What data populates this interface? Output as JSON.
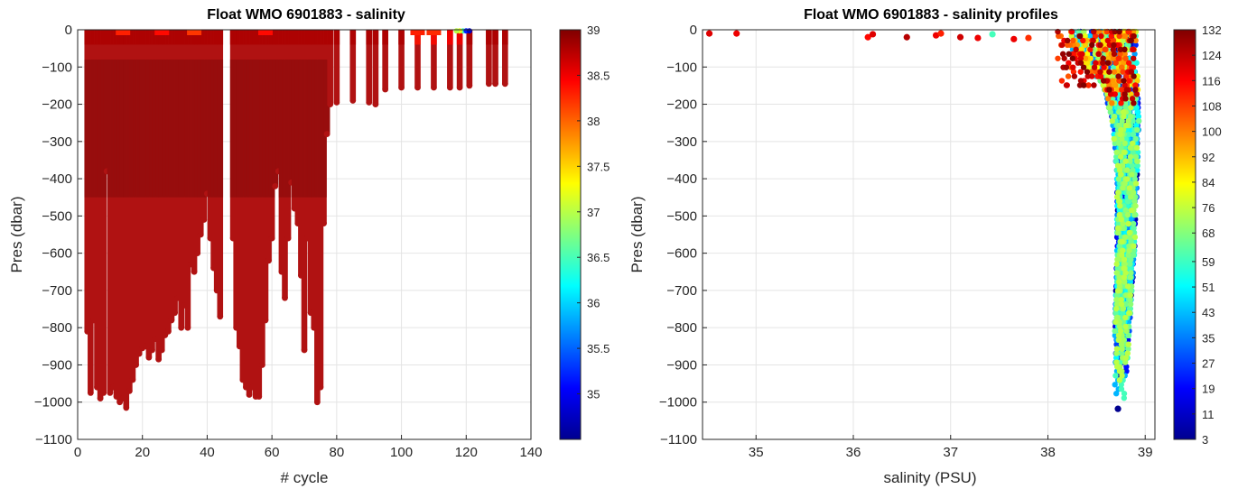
{
  "chart_data": [
    {
      "type": "scatter",
      "title": "Float WMO 6901883 - salinity",
      "xlabel": "# cycle",
      "ylabel": "Pres (dbar)",
      "xlim": [
        0,
        140
      ],
      "ylim": [
        -1100,
        0
      ],
      "xticks": [
        0,
        20,
        40,
        60,
        80,
        100,
        120,
        140
      ],
      "yticks": [
        0,
        -100,
        -200,
        -300,
        -400,
        -500,
        -600,
        -700,
        -800,
        -900,
        -1000,
        -1100
      ],
      "grid": true,
      "colormap": "jet",
      "colorbar": {
        "range": [
          34.5,
          39
        ],
        "ticks": [
          35,
          35.5,
          36,
          36.5,
          37,
          37.5,
          38,
          38.5,
          39
        ]
      },
      "profiles": [
        {
          "cycle": 3,
          "max_pres": 810
        },
        {
          "cycle": 4,
          "max_pres": 975
        },
        {
          "cycle": 5,
          "max_pres": 780
        },
        {
          "cycle": 6,
          "max_pres": 960
        },
        {
          "cycle": 7,
          "max_pres": 990
        },
        {
          "cycle": 8,
          "max_pres": 975
        },
        {
          "cycle": 9,
          "max_pres": 380
        },
        {
          "cycle": 10,
          "max_pres": 975
        },
        {
          "cycle": 11,
          "max_pres": 960
        },
        {
          "cycle": 12,
          "max_pres": 985
        },
        {
          "cycle": 13,
          "max_pres": 1000
        },
        {
          "cycle": 14,
          "max_pres": 990
        },
        {
          "cycle": 15,
          "max_pres": 1015
        },
        {
          "cycle": 16,
          "max_pres": 970
        },
        {
          "cycle": 17,
          "max_pres": 940
        },
        {
          "cycle": 18,
          "max_pres": 900
        },
        {
          "cycle": 19,
          "max_pres": 870
        },
        {
          "cycle": 20,
          "max_pres": 855
        },
        {
          "cycle": 21,
          "max_pres": 850
        },
        {
          "cycle": 22,
          "max_pres": 880
        },
        {
          "cycle": 23,
          "max_pres": 860
        },
        {
          "cycle": 24,
          "max_pres": 830
        },
        {
          "cycle": 25,
          "max_pres": 885
        },
        {
          "cycle": 26,
          "max_pres": 860
        },
        {
          "cycle": 27,
          "max_pres": 820
        },
        {
          "cycle": 28,
          "max_pres": 810
        },
        {
          "cycle": 29,
          "max_pres": 780
        },
        {
          "cycle": 30,
          "max_pres": 760
        },
        {
          "cycle": 31,
          "max_pres": 720
        },
        {
          "cycle": 32,
          "max_pres": 800
        },
        {
          "cycle": 33,
          "max_pres": 740
        },
        {
          "cycle": 34,
          "max_pres": 800
        },
        {
          "cycle": 35,
          "max_pres": 630
        },
        {
          "cycle": 36,
          "max_pres": 650
        },
        {
          "cycle": 37,
          "max_pres": 600
        },
        {
          "cycle": 38,
          "max_pres": 550
        },
        {
          "cycle": 39,
          "max_pres": 510
        },
        {
          "cycle": 40,
          "max_pres": 440
        },
        {
          "cycle": 41,
          "max_pres": 560
        },
        {
          "cycle": 42,
          "max_pres": 640
        },
        {
          "cycle": 43,
          "max_pres": 700
        },
        {
          "cycle": 44,
          "max_pres": 770
        },
        {
          "cycle": 48,
          "max_pres": 560
        },
        {
          "cycle": 49,
          "max_pres": 800
        },
        {
          "cycle": 50,
          "max_pres": 850
        },
        {
          "cycle": 51,
          "max_pres": 940
        },
        {
          "cycle": 52,
          "max_pres": 960
        },
        {
          "cycle": 53,
          "max_pres": 980
        },
        {
          "cycle": 54,
          "max_pres": 960
        },
        {
          "cycle": 55,
          "max_pres": 985
        },
        {
          "cycle": 56,
          "max_pres": 985
        },
        {
          "cycle": 57,
          "max_pres": 900
        },
        {
          "cycle": 58,
          "max_pres": 780
        },
        {
          "cycle": 59,
          "max_pres": 620
        },
        {
          "cycle": 60,
          "max_pres": 560
        },
        {
          "cycle": 61,
          "max_pres": 420
        },
        {
          "cycle": 62,
          "max_pres": 380
        },
        {
          "cycle": 63,
          "max_pres": 650
        },
        {
          "cycle": 64,
          "max_pres": 720
        },
        {
          "cycle": 65,
          "max_pres": 560
        },
        {
          "cycle": 66,
          "max_pres": 410
        },
        {
          "cycle": 67,
          "max_pres": 480
        },
        {
          "cycle": 68,
          "max_pres": 520
        },
        {
          "cycle": 69,
          "max_pres": 660
        },
        {
          "cycle": 70,
          "max_pres": 860
        },
        {
          "cycle": 71,
          "max_pres": 560
        },
        {
          "cycle": 72,
          "max_pres": 760
        },
        {
          "cycle": 73,
          "max_pres": 800
        },
        {
          "cycle": 74,
          "max_pres": 1000
        },
        {
          "cycle": 75,
          "max_pres": 960
        },
        {
          "cycle": 76,
          "max_pres": 520
        },
        {
          "cycle": 77,
          "max_pres": 280
        },
        {
          "cycle": 78,
          "max_pres": 200
        },
        {
          "cycle": 80,
          "max_pres": 195
        },
        {
          "cycle": 85,
          "max_pres": 190
        },
        {
          "cycle": 90,
          "max_pres": 195
        },
        {
          "cycle": 92,
          "max_pres": 200
        },
        {
          "cycle": 95,
          "max_pres": 160
        },
        {
          "cycle": 100,
          "max_pres": 155
        },
        {
          "cycle": 105,
          "max_pres": 155
        },
        {
          "cycle": 110,
          "max_pres": 155
        },
        {
          "cycle": 115,
          "max_pres": 155
        },
        {
          "cycle": 118,
          "max_pres": 155
        },
        {
          "cycle": 121,
          "max_pres": 150
        },
        {
          "cycle": 127,
          "max_pres": 145
        },
        {
          "cycle": 129,
          "max_pres": 145
        },
        {
          "cycle": 132,
          "max_pres": 145
        }
      ]
    },
    {
      "type": "scatter",
      "title": "Float WMO 6901883 - salinity profiles",
      "xlabel": "salinity (PSU)",
      "ylabel": "Pres (dbar)",
      "xlim": [
        34.45,
        39.1
      ],
      "ylim": [
        -1100,
        0
      ],
      "xticks": [
        35,
        36,
        37,
        38,
        39
      ],
      "yticks": [
        0,
        -100,
        -200,
        -300,
        -400,
        -500,
        -600,
        -700,
        -800,
        -900,
        -1000,
        -1100
      ],
      "grid": true,
      "colormap": "jet",
      "colorbar": {
        "range": [
          3,
          132
        ],
        "ticks": [
          3,
          11,
          19,
          27,
          35,
          43,
          51,
          59,
          68,
          76,
          84,
          92,
          100,
          108,
          116,
          124,
          132
        ]
      },
      "surface_points": [
        {
          "salinity": 34.52,
          "pres": -10,
          "cycle": 120
        },
        {
          "salinity": 34.8,
          "pres": -10,
          "cycle": 118
        },
        {
          "salinity": 36.15,
          "pres": -20,
          "cycle": 115
        },
        {
          "salinity": 36.2,
          "pres": -12,
          "cycle": 120
        },
        {
          "salinity": 36.55,
          "pres": -20,
          "cycle": 125
        },
        {
          "salinity": 36.85,
          "pres": -15,
          "cycle": 118
        },
        {
          "salinity": 36.9,
          "pres": -10,
          "cycle": 112
        },
        {
          "salinity": 37.1,
          "pres": -20,
          "cycle": 122
        },
        {
          "salinity": 37.28,
          "pres": -22,
          "cycle": 118
        },
        {
          "salinity": 37.43,
          "pres": -12,
          "cycle": 60
        },
        {
          "salinity": 37.65,
          "pres": -25,
          "cycle": 118
        },
        {
          "salinity": 37.8,
          "pres": -22,
          "cycle": 110
        }
      ],
      "envelope": [
        {
          "pres": -50,
          "min_sal": 38.2,
          "max_sal": 38.95
        },
        {
          "pres": -150,
          "min_sal": 38.55,
          "max_sal": 38.95
        },
        {
          "pres": -250,
          "min_sal": 38.65,
          "max_sal": 38.95
        },
        {
          "pres": -400,
          "min_sal": 38.7,
          "max_sal": 38.93
        },
        {
          "pres": -600,
          "min_sal": 38.7,
          "max_sal": 38.9
        },
        {
          "pres": -800,
          "min_sal": 38.68,
          "max_sal": 38.85
        },
        {
          "pres": -1000,
          "min_sal": 38.68,
          "max_sal": 38.8
        }
      ]
    }
  ]
}
